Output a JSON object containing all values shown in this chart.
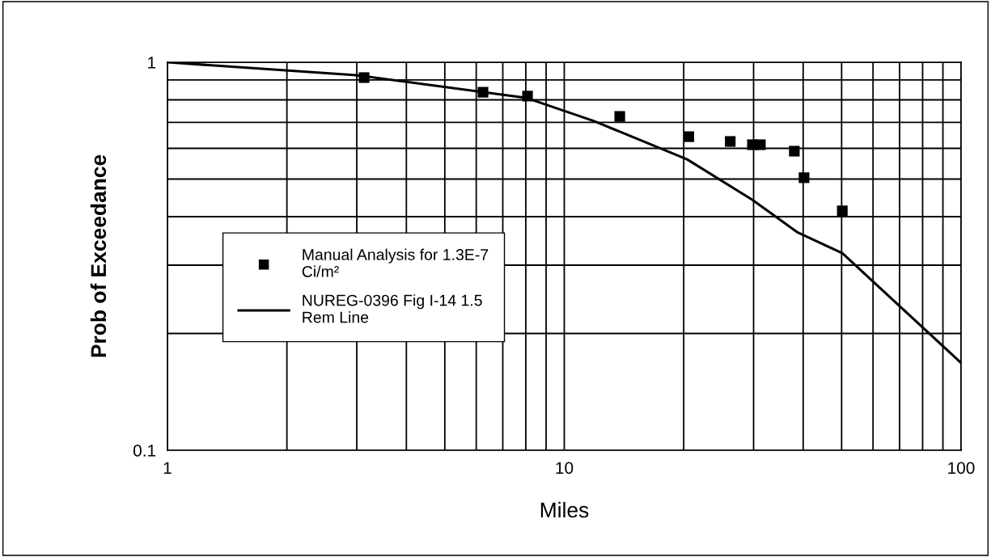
{
  "chart_data": {
    "type": "scatter",
    "xlabel": "Miles",
    "ylabel": "Prob of Exceedance",
    "log": "xy",
    "xlim": [
      1,
      100
    ],
    "xticks": [
      1,
      10,
      100
    ],
    "ylim": [
      0.1,
      1
    ],
    "yticks": [
      0.1,
      1
    ],
    "grid": true,
    "legend": "left",
    "series": [
      {
        "name": "Manual Analysis for 1.3E-7 Ci/m²",
        "marker": "square",
        "color": "#000000",
        "x": [
          3.13,
          6.24,
          8.08,
          13.8,
          20.6,
          26.2,
          29.8,
          31.2,
          38.0,
          40.2,
          50.2
        ],
        "values": [
          0.913,
          0.837,
          0.818,
          0.725,
          0.643,
          0.625,
          0.613,
          0.613,
          0.59,
          0.504,
          0.414
        ]
      },
      {
        "name": "NUREG-0396 Fig I-14 1.5 Rem Line",
        "type": "line",
        "marker": "none",
        "line_style": "solid",
        "color": "#000000",
        "x": [
          1,
          2.99,
          8.0,
          11.9,
          20.4,
          29.8,
          38.6,
          50.2,
          100
        ],
        "values": [
          1,
          0.926,
          0.81,
          0.705,
          0.562,
          0.442,
          0.365,
          0.322,
          0.168
        ]
      }
    ]
  }
}
